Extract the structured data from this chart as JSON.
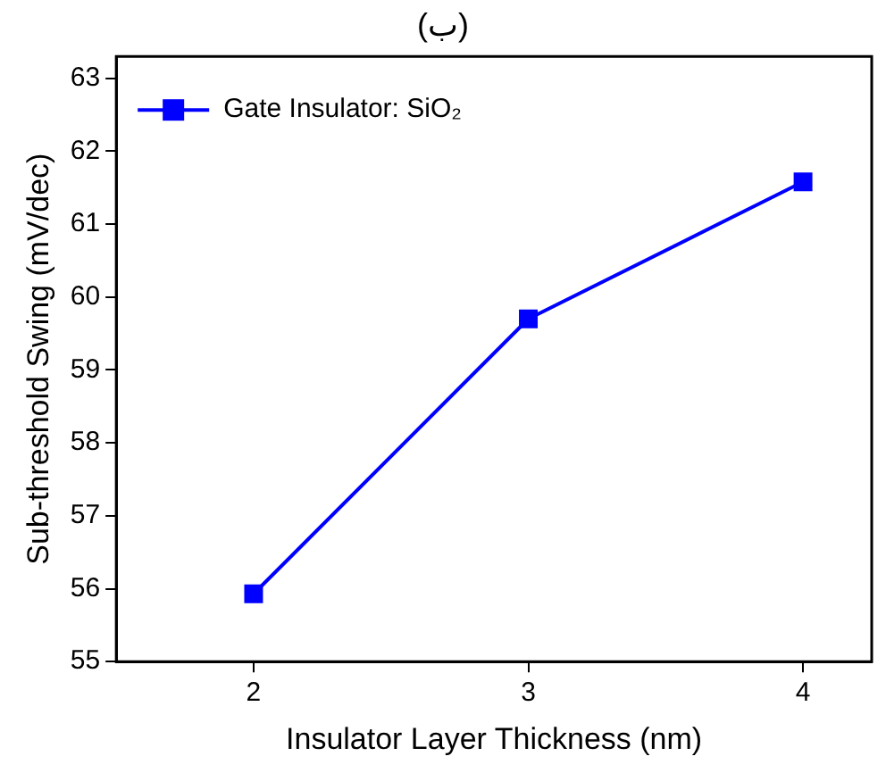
{
  "chart_data": {
    "type": "line",
    "title": "(ب)",
    "xlabel": "Insulator Layer Thickness (nm)",
    "ylabel": "Sub-threshold Swing (mV/dec)",
    "x": [
      2,
      3,
      4
    ],
    "series": [
      {
        "name": "Gate Insulator: SiO₂",
        "color": "#0000ff",
        "values": [
          55.93,
          59.7,
          61.58
        ]
      }
    ],
    "xlim": [
      1.5,
      4.25
    ],
    "xticks": [
      2,
      3,
      4
    ],
    "ylim": [
      55,
      63.3
    ],
    "yticks": [
      55,
      56,
      57,
      58,
      59,
      60,
      61,
      62,
      63
    ],
    "grid": false,
    "legend": "top left",
    "marker": "square",
    "line_style": "solid"
  }
}
